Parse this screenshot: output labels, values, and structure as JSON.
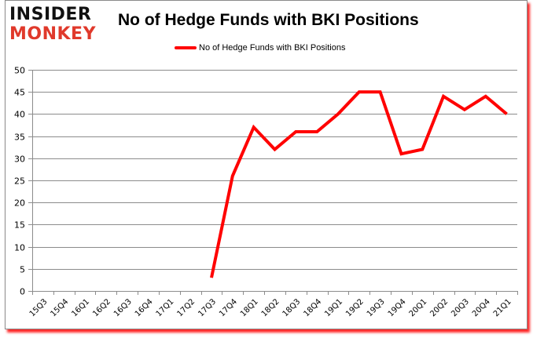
{
  "logo": {
    "line1": "INSIDER",
    "line2": "MONKEY"
  },
  "colors": {
    "series": "#ff0000",
    "grid": "#8c8c8c",
    "logo_red": "#e0392b",
    "frame_shadow": "#ff0000"
  },
  "chart_data": {
    "type": "line",
    "title": "No of Hedge Funds with BKI Positions",
    "xlabel": "",
    "ylabel": "",
    "ylim": [
      0,
      50
    ],
    "yticks": [
      0,
      5,
      10,
      15,
      20,
      25,
      30,
      35,
      40,
      45,
      50
    ],
    "grid": true,
    "legend_position": "top",
    "categories": [
      "15Q3",
      "15Q4",
      "16Q1",
      "16Q2",
      "16Q3",
      "16Q4",
      "17Q1",
      "17Q2",
      "17Q3",
      "17Q4",
      "18Q1",
      "18Q2",
      "18Q3",
      "18Q4",
      "19Q1",
      "19Q2",
      "19Q3",
      "19Q4",
      "20Q1",
      "20Q2",
      "20Q3",
      "20Q4",
      "21Q1"
    ],
    "series": [
      {
        "name": "No of Hedge Funds with BKI Positions",
        "color": "#ff0000",
        "values": [
          null,
          null,
          null,
          null,
          null,
          null,
          null,
          null,
          3,
          26,
          37,
          32,
          36,
          36,
          40,
          45,
          45,
          31,
          32,
          44,
          41,
          44,
          40
        ]
      }
    ]
  }
}
